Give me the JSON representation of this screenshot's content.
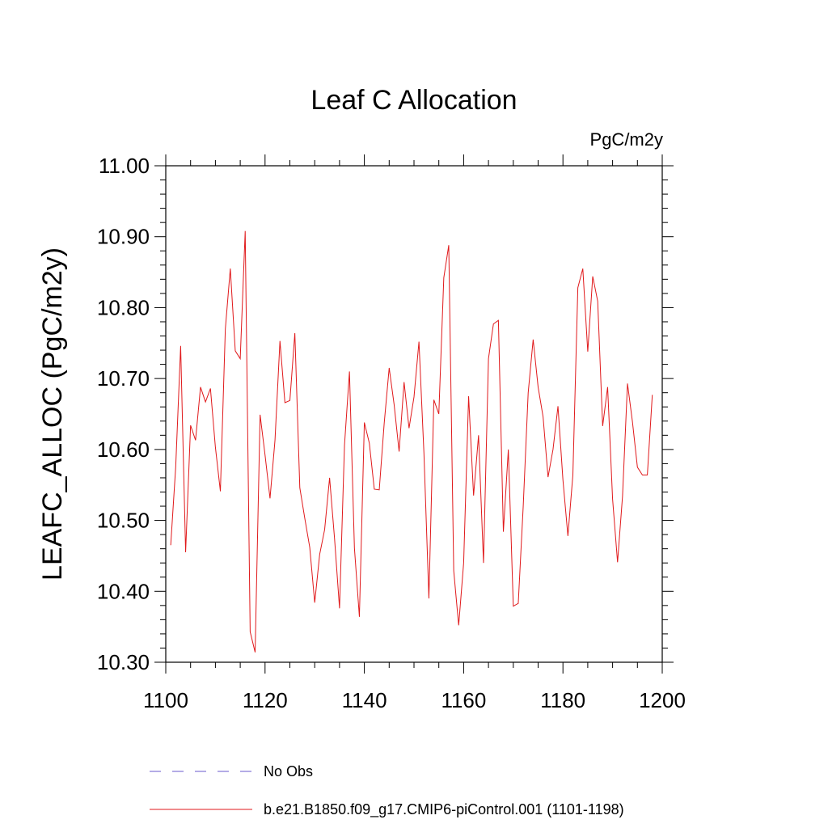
{
  "chart_data": {
    "type": "line",
    "title": "Leaf C Allocation",
    "units_label": "PgC/m2y",
    "ylabel": "LEAFC_ALLOC  (PgC/m2y)",
    "xlabel": "",
    "xlim": [
      1100,
      1200
    ],
    "ylim": [
      10.3,
      11.0
    ],
    "x_ticks": [
      1100,
      1120,
      1140,
      1160,
      1180,
      1200
    ],
    "x_tick_labels": [
      "1100",
      "1120",
      "1140",
      "1160",
      "1180",
      "1200"
    ],
    "y_ticks": [
      10.3,
      10.4,
      10.5,
      10.6,
      10.7,
      10.8,
      10.9,
      11.0
    ],
    "y_tick_labels": [
      "10.30",
      "10.40",
      "10.50",
      "10.60",
      "10.70",
      "10.80",
      "10.90",
      "11.00"
    ],
    "legend": [
      {
        "label": "No Obs",
        "color": "#6a5acd",
        "style": "dashed"
      },
      {
        "label": "b.e21.B1850.f09_g17.CMIP6-piControl.001 (1101-1198)",
        "color": "#e0191b",
        "style": "solid"
      }
    ],
    "series": [
      {
        "name": "b.e21.B1850.f09_g17.CMIP6-piControl.001 (1101-1198)",
        "color": "#e0191b",
        "x": [
          1101,
          1102,
          1103,
          1104,
          1105,
          1106,
          1107,
          1108,
          1109,
          1110,
          1111,
          1112,
          1113,
          1114,
          1115,
          1116,
          1117,
          1118,
          1119,
          1120,
          1121,
          1122,
          1123,
          1124,
          1125,
          1126,
          1127,
          1128,
          1129,
          1130,
          1131,
          1132,
          1133,
          1134,
          1135,
          1136,
          1137,
          1138,
          1139,
          1140,
          1141,
          1142,
          1143,
          1144,
          1145,
          1146,
          1147,
          1148,
          1149,
          1150,
          1151,
          1152,
          1153,
          1154,
          1155,
          1156,
          1157,
          1158,
          1159,
          1160,
          1161,
          1162,
          1163,
          1164,
          1165,
          1166,
          1167,
          1168,
          1169,
          1170,
          1171,
          1172,
          1173,
          1174,
          1175,
          1176,
          1177,
          1178,
          1179,
          1180,
          1181,
          1182,
          1183,
          1184,
          1185,
          1186,
          1187,
          1188,
          1189,
          1190,
          1191,
          1192,
          1193,
          1194,
          1195,
          1196,
          1197,
          1198
        ],
        "values": [
          10.465,
          10.575,
          10.746,
          10.455,
          10.634,
          10.613,
          10.688,
          10.667,
          10.686,
          10.603,
          10.541,
          10.77,
          10.855,
          10.739,
          10.728,
          10.908,
          10.343,
          10.314,
          10.649,
          10.592,
          10.531,
          10.613,
          10.753,
          10.666,
          10.669,
          10.764,
          10.546,
          10.503,
          10.462,
          10.384,
          10.452,
          10.487,
          10.56,
          10.474,
          10.376,
          10.606,
          10.71,
          10.461,
          10.364,
          10.638,
          10.609,
          10.544,
          10.543,
          10.637,
          10.715,
          10.663,
          10.597,
          10.695,
          10.63,
          10.674,
          10.752,
          10.595,
          10.39,
          10.67,
          10.65,
          10.842,
          10.888,
          10.429,
          10.352,
          10.44,
          10.675,
          10.535,
          10.62,
          10.44,
          10.728,
          10.777,
          10.782,
          10.484,
          10.6,
          10.379,
          10.383,
          10.52,
          10.68,
          10.755,
          10.688,
          10.646,
          10.561,
          10.6,
          10.661,
          10.557,
          10.478,
          10.564,
          10.828,
          10.855,
          10.738,
          10.844,
          10.809,
          10.633,
          10.688,
          10.53,
          10.441,
          10.534,
          10.693,
          10.639,
          10.575,
          10.564,
          10.564,
          10.677
        ]
      }
    ]
  }
}
